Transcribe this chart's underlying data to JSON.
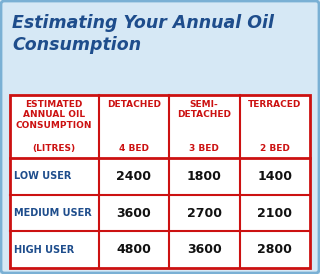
{
  "title": "Estimating Your Annual Oil\nConsumption",
  "title_color": "#1e4d8c",
  "title_fontsize": 12.5,
  "bg_color": "#d6e8f5",
  "outer_border_color": "#7ab0d4",
  "table_border_color": "#cc1111",
  "header_col0_lines": [
    "ESTIMATED",
    "ANNUAL OIL",
    "CONSUMPTION",
    "(LITRES)"
  ],
  "header_cols": [
    "DETACHED",
    "SEMI-\nDETACHED",
    "TERRACED"
  ],
  "header_beds": [
    "4 BED",
    "3 BED",
    "2 BED"
  ],
  "header_color": "#cc1111",
  "header_fontsize": 6.5,
  "bed_fontsize": 6.5,
  "row_label_color": "#1e4d8c",
  "row_label_fontsize": 7.0,
  "value_color": "#111111",
  "value_fontsize": 9.0,
  "rows": [
    {
      "label": "LOW USER",
      "values": [
        "2400",
        "1800",
        "1400"
      ]
    },
    {
      "label": "MEDIUM USER",
      "values": [
        "3600",
        "2700",
        "2100"
      ]
    },
    {
      "label": "HIGH USER",
      "values": [
        "4800",
        "3600",
        "2800"
      ]
    }
  ],
  "figsize": [
    3.2,
    2.74
  ],
  "dpi": 100
}
